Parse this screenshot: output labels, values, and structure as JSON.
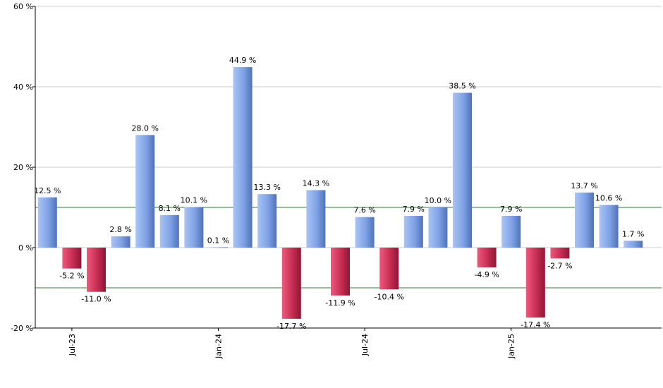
{
  "chart_data": {
    "type": "bar",
    "values": [
      12.5,
      -5.2,
      -11.0,
      2.8,
      28.0,
      8.1,
      10.1,
      0.1,
      44.9,
      13.3,
      -17.7,
      14.3,
      -11.9,
      7.6,
      -10.4,
      7.9,
      10.0,
      38.5,
      -4.9,
      7.9,
      -17.4,
      -2.7,
      13.7,
      10.6,
      1.7
    ],
    "value_labels": [
      "12.5 %",
      "-5.2 %",
      "-11.0 %",
      "2.8 %",
      "28.0 %",
      "8.1 %",
      "10.1 %",
      "0.1 %",
      "44.9 %",
      "13.3 %",
      "-17.7 %",
      "14.3 %",
      "-11.9 %",
      "7.6 %",
      "-10.4 %",
      "7.9 %",
      "10.0 %",
      "38.5 %",
      "-4.9 %",
      "7.9 %",
      "-17.4 %",
      "-2.7 %",
      "13.7 %",
      "10.6 %",
      "1.7 %"
    ],
    "ylim": [
      -20,
      60
    ],
    "y_ticks": [
      60,
      40,
      20,
      0,
      -20
    ],
    "y_tick_labels": [
      "60 %",
      "40 %",
      "20 %",
      "0 %",
      "-20 %"
    ],
    "x_tick_labels": [
      {
        "label": "Jul-23",
        "bar_index": 1
      },
      {
        "label": "Jan-24",
        "bar_index": 7
      },
      {
        "label": "Jul-24",
        "bar_index": 13
      },
      {
        "label": "Jan-25",
        "bar_index": 19
      }
    ],
    "reference_lines": [
      10,
      -10
    ],
    "grid": true,
    "colors": {
      "positive": "#6f93dd",
      "positive_light": "#a9c4f5",
      "negative": "#b41f45",
      "negative_light": "#ee5a7c",
      "reference_line": "#2e7d32",
      "grid": "#cccccc"
    }
  }
}
